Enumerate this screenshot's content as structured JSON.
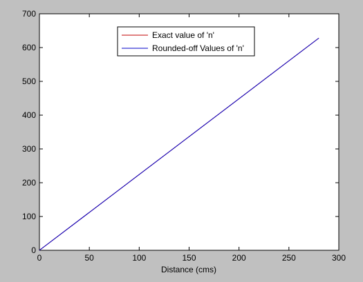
{
  "chart_data": {
    "type": "line",
    "title": "",
    "xlabel": "Distance (cms)",
    "ylabel": "",
    "xlim": [
      0,
      300
    ],
    "ylim": [
      0,
      700
    ],
    "xticks": [
      0,
      50,
      100,
      150,
      200,
      250,
      300
    ],
    "yticks": [
      0,
      100,
      200,
      300,
      400,
      500,
      600,
      700
    ],
    "grid": false,
    "legend_position": "top-center",
    "series": [
      {
        "name": "Exact value of 'n'",
        "color": "#c00000",
        "x": [
          0,
          280
        ],
        "y": [
          0,
          628
        ]
      },
      {
        "name": "Rounded-off Values of 'n'",
        "color": "#0000c8",
        "x": [
          0,
          280
        ],
        "y": [
          0,
          628
        ]
      }
    ]
  }
}
